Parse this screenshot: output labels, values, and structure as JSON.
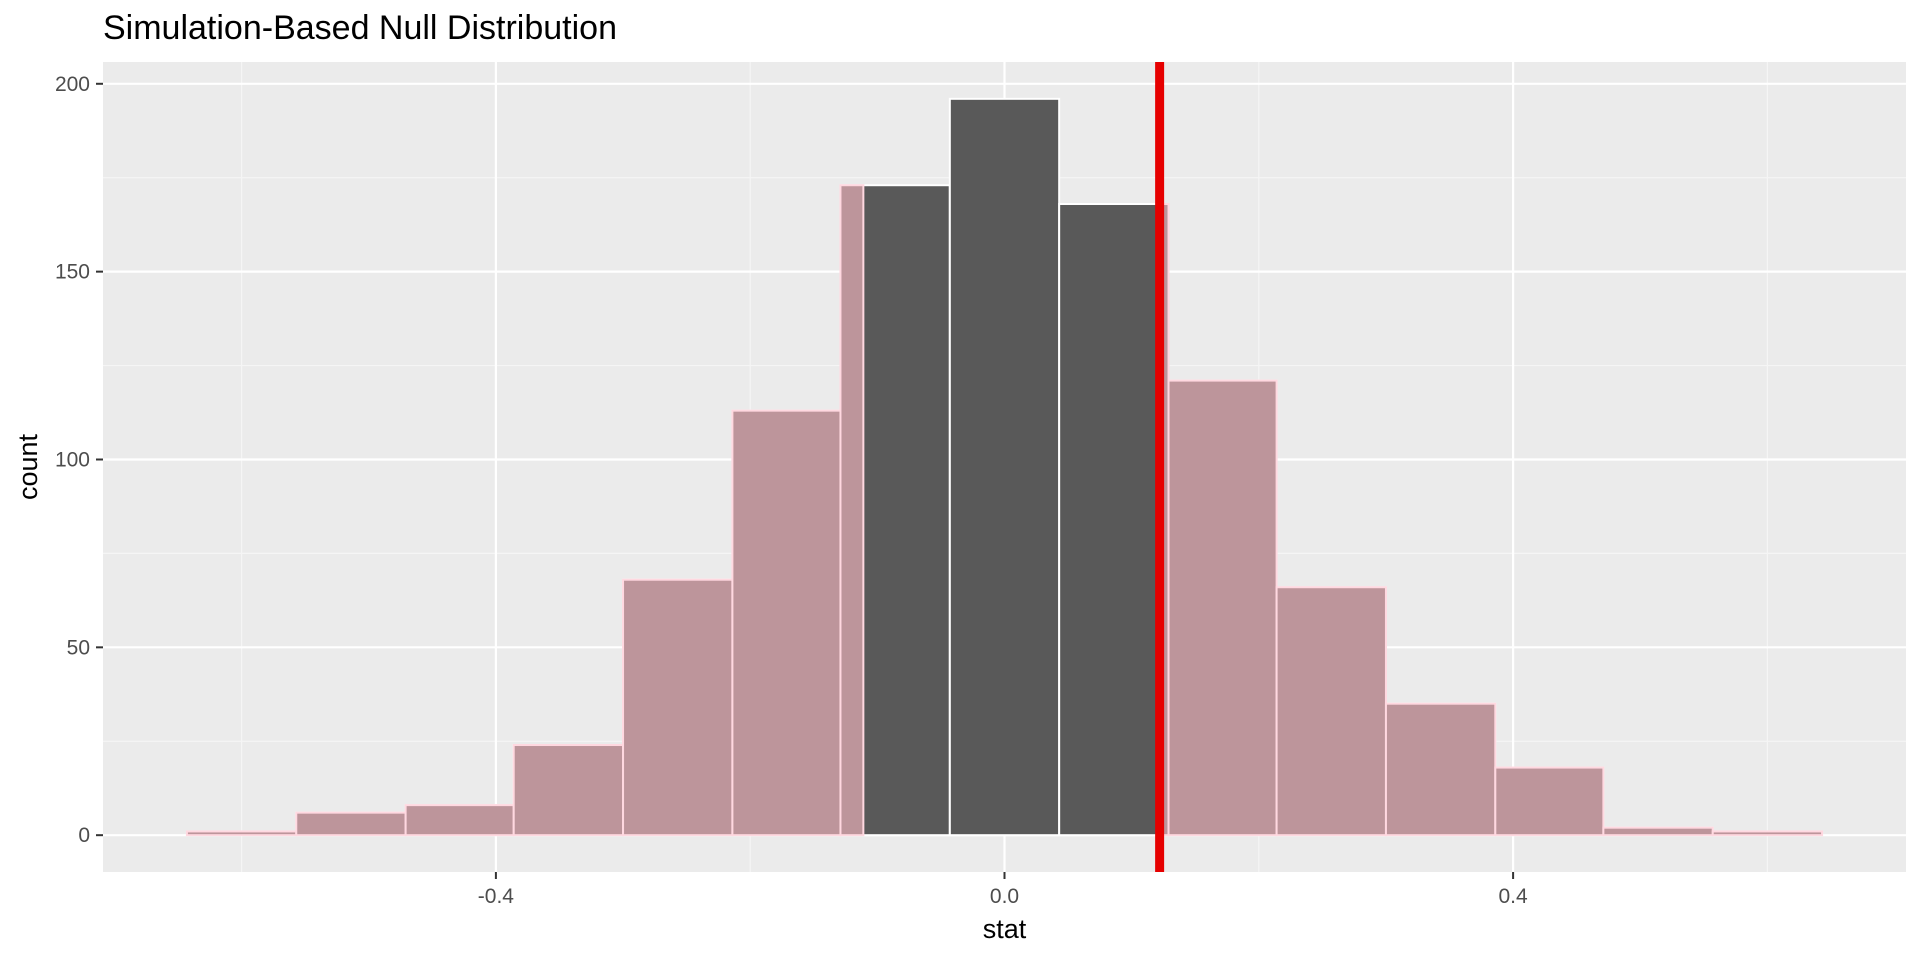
{
  "chart_data": {
    "type": "bar",
    "title": "Simulation-Based Null Distribution",
    "xlabel": "stat",
    "ylabel": "count",
    "xlim": [
      -0.709,
      0.709
    ],
    "ylim": [
      -9.8,
      205.8
    ],
    "x_ticks": [
      -0.4,
      0.0,
      0.4
    ],
    "x_tick_labels": [
      "-0.4",
      "0.0",
      "0.4"
    ],
    "y_ticks": [
      0,
      50,
      100,
      150,
      200
    ],
    "y_tick_labels": [
      "0",
      "50",
      "100",
      "150",
      "200"
    ],
    "bin_width": 0.0857,
    "bins": [
      {
        "x_min": -0.643,
        "x_max": -0.557,
        "count": 1
      },
      {
        "x_min": -0.557,
        "x_max": -0.471,
        "count": 6
      },
      {
        "x_min": -0.471,
        "x_max": -0.386,
        "count": 8
      },
      {
        "x_min": -0.386,
        "x_max": -0.3,
        "count": 24
      },
      {
        "x_min": -0.3,
        "x_max": -0.214,
        "count": 68
      },
      {
        "x_min": -0.214,
        "x_max": -0.129,
        "count": 113
      },
      {
        "x_min": -0.129,
        "x_max": -0.043,
        "count": 173
      },
      {
        "x_min": -0.043,
        "x_max": 0.043,
        "count": 196
      },
      {
        "x_min": 0.043,
        "x_max": 0.129,
        "count": 168
      },
      {
        "x_min": 0.129,
        "x_max": 0.214,
        "count": 121
      },
      {
        "x_min": 0.214,
        "x_max": 0.3,
        "count": 66
      },
      {
        "x_min": 0.3,
        "x_max": 0.386,
        "count": 35
      },
      {
        "x_min": 0.386,
        "x_max": 0.471,
        "count": 18
      },
      {
        "x_min": 0.471,
        "x_max": 0.557,
        "count": 2
      },
      {
        "x_min": 0.557,
        "x_max": 0.643,
        "count": 1
      }
    ],
    "observed_stat": 0.122,
    "shaded_region": {
      "type": "two-sided",
      "left_cutoff": -0.111,
      "right_cutoff": 0.122
    },
    "grid": true,
    "colors": {
      "panel_background": "#ebebeb",
      "grid_major": "#ffffff",
      "grid_minor": "#f5f5f5",
      "bar_fill": "#595959",
      "bar_outline": "#ffffff",
      "shade_fill": "#bd959b",
      "shade_outline": "#ffd8e0",
      "observed_line": "#e60000",
      "tick_text": "#4d4d4d",
      "text": "#000000"
    }
  }
}
